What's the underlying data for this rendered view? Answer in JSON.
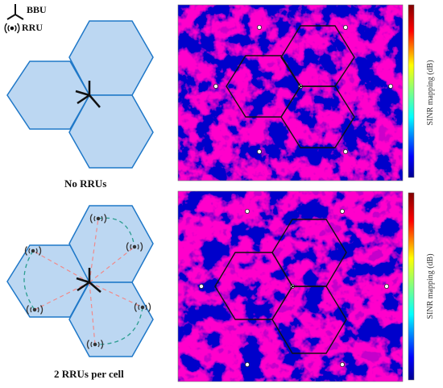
{
  "legend": {
    "bbu_label": "BBU",
    "rru_label": "RRU"
  },
  "panels": {
    "top_caption": "No RRUs",
    "bottom_caption": "2 RRUs per cell"
  },
  "heatmap": {
    "colorbar_label": "SINR mapping (dB)",
    "colormap": [
      "#00008f",
      "#0000ff",
      "#0080ff",
      "#00ffff",
      "#80ff80",
      "#ffff00",
      "#ff8000",
      "#ff0000",
      "#800000"
    ]
  },
  "colors": {
    "cell_fill": "#bcd7f2",
    "cell_stroke": "#1f78c8",
    "pink_dash": "#f08a8a",
    "teal_dash": "#2a9d8f",
    "bbu": "#111111"
  }
}
